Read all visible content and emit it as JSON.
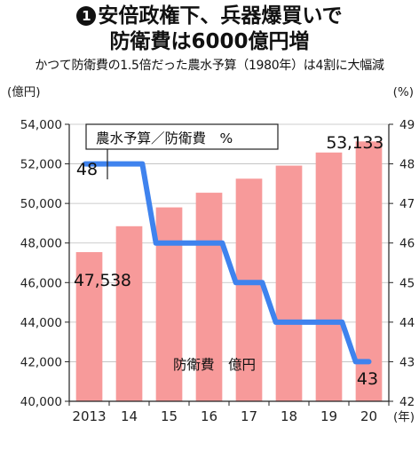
{
  "header": {
    "number": "1",
    "title_line1": "安倍政権下、兵器爆買いで",
    "title_line2": "防衛費は6000億円増",
    "subtitle": "かつて防衛費の1.5倍だった農水予算（1980年）は4割に大幅減"
  },
  "chart_data": {
    "type": "bar+line",
    "categories": [
      "2013",
      "14",
      "15",
      "16",
      "17",
      "18",
      "19",
      "20"
    ],
    "left_axis": {
      "unit_label": "(億円)",
      "min": 40000,
      "max": 54000,
      "ticks": [
        "40,000",
        "42,000",
        "44,000",
        "46,000",
        "48,000",
        "50,000",
        "52,000",
        "54,000"
      ]
    },
    "right_axis": {
      "unit_label": "(%)",
      "min": 42,
      "max": 49,
      "ticks": [
        "42",
        "43",
        "44",
        "45",
        "46",
        "47",
        "48",
        "49"
      ]
    },
    "x_unit_label": "(年)",
    "series": [
      {
        "name": "防衛費　億円",
        "kind": "bar",
        "axis": "left",
        "color": "#f79a9a",
        "values": [
          47538,
          48848,
          49801,
          50541,
          51251,
          51911,
          52574,
          53133
        ]
      },
      {
        "name": "農水予算／防衛費　%",
        "kind": "line",
        "axis": "right",
        "color": "#3f83ee",
        "values": [
          48,
          48,
          46,
          46,
          45,
          44,
          44,
          43
        ]
      }
    ],
    "data_labels": {
      "bar_first": "47,538",
      "bar_last": "53,133",
      "line_first": "48",
      "line_last": "43"
    },
    "legend": {
      "line_label": "農水予算／防衛費　%",
      "bar_label": "防衛費　億円"
    },
    "grid": true
  }
}
